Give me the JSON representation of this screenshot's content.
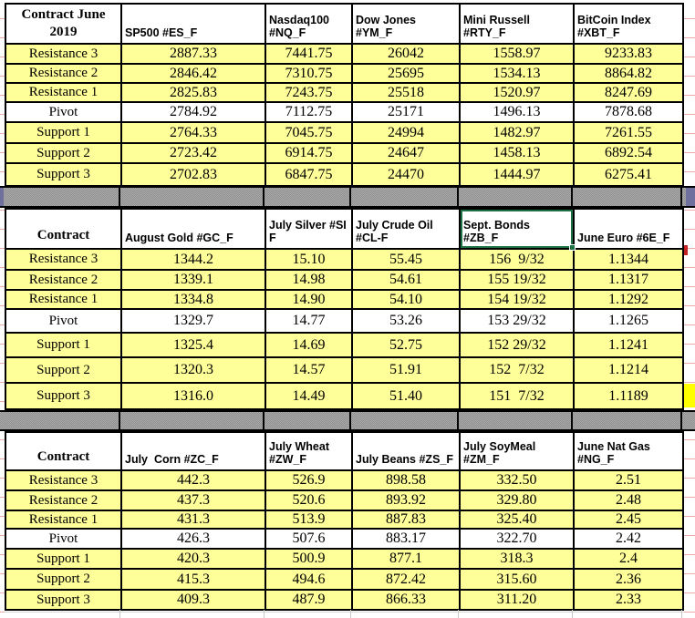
{
  "row_labels": [
    "Resistance 3",
    "Resistance 2",
    "Resistance 1",
    "Pivot",
    "Support 1",
    "Support 2",
    "Support 3"
  ],
  "selection": {
    "selected_cell": "Sept. Bonds #ZB_F"
  },
  "colors": {
    "cell_fill": "#FFFF99",
    "pivot_row_fill": "#FFFFFF",
    "separator_fill": "#9A9A9A",
    "selection_border": "#1E7145",
    "margin_highlight": "#FFFF00",
    "grid_border": "#000000"
  },
  "tables": [
    {
      "corner": "Contract June\n2019",
      "columns": [
        "SP500 #ES_F",
        "Nasdaq100\n#NQ_F",
        "Dow Jones\n#YM_F",
        "Mini Russell\n#RTY_F",
        "BitCoin Index\n#XBT_F"
      ],
      "rows": [
        {
          "label": "Resistance 3",
          "values": [
            "2887.33",
            "7441.75",
            "26042",
            "1558.97",
            "9233.83"
          ]
        },
        {
          "label": "Resistance 2",
          "values": [
            "2846.42",
            "7310.75",
            "25695",
            "1534.13",
            "8864.82"
          ]
        },
        {
          "label": "Resistance 1",
          "values": [
            "2825.83",
            "7243.75",
            "25518",
            "1520.97",
            "8247.69"
          ]
        },
        {
          "label": "Pivot",
          "values": [
            "2784.92",
            "7112.75",
            "25171",
            "1496.13",
            "7878.68"
          ]
        },
        {
          "label": "Support 1",
          "values": [
            "2764.33",
            "7045.75",
            "24994",
            "1482.97",
            "7261.55"
          ]
        },
        {
          "label": "Support 2",
          "values": [
            "2723.42",
            "6914.75",
            "24647",
            "1458.13",
            "6892.54"
          ]
        },
        {
          "label": "Support 3",
          "values": [
            "2702.83",
            "6847.75",
            "24470",
            "1444.97",
            "6275.41"
          ]
        }
      ]
    },
    {
      "corner": "Contract",
      "columns": [
        "August Gold #GC_F",
        "July Silver #SI\nF",
        "July Crude Oil\n#CL-F",
        "Sept. Bonds\n#ZB_F",
        "June Euro #6E_F"
      ],
      "rows": [
        {
          "label": "Resistance 3",
          "values": [
            "1344.2",
            "15.10",
            "55.45",
            "156  9/32",
            "1.1344"
          ]
        },
        {
          "label": "Resistance 2",
          "values": [
            "1339.1",
            "14.98",
            "54.61",
            "155 19/32",
            "1.1317"
          ]
        },
        {
          "label": "Resistance 1",
          "values": [
            "1334.8",
            "14.90",
            "54.10",
            "154 19/32",
            "1.1292"
          ]
        },
        {
          "label": "Pivot",
          "values": [
            "1329.7",
            "14.77",
            "53.26",
            "153 29/32",
            "1.1265"
          ]
        },
        {
          "label": "Support 1",
          "values": [
            "1325.4",
            "14.69",
            "52.75",
            "152 29/32",
            "1.1241"
          ]
        },
        {
          "label": "Support 2",
          "values": [
            "1320.3",
            "14.57",
            "51.91",
            "152  7/32",
            "1.1214"
          ]
        },
        {
          "label": "Support 3",
          "values": [
            "1316.0",
            "14.49",
            "51.40",
            "151  7/32",
            "1.1189"
          ]
        }
      ]
    },
    {
      "corner": "Contract",
      "columns": [
        "July  Corn #ZC_F",
        "July Wheat\n#ZW_F",
        "July Beans #ZS_F",
        "July SoyMeal\n#ZM_F",
        "June Nat Gas\n#NG_F"
      ],
      "rows": [
        {
          "label": "Resistance 3",
          "values": [
            "442.3",
            "526.9",
            "898.58",
            "332.50",
            "2.51"
          ]
        },
        {
          "label": "Resistance 2",
          "values": [
            "437.3",
            "520.6",
            "893.92",
            "329.80",
            "2.48"
          ]
        },
        {
          "label": "Resistance 1",
          "values": [
            "431.3",
            "513.9",
            "887.83",
            "325.40",
            "2.45"
          ]
        },
        {
          "label": "Pivot",
          "values": [
            "426.3",
            "507.6",
            "883.17",
            "322.70",
            "2.42"
          ]
        },
        {
          "label": "Support 1",
          "values": [
            "420.3",
            "500.9",
            "877.1",
            "318.3",
            "2.4"
          ]
        },
        {
          "label": "Support 2",
          "values": [
            "415.3",
            "494.6",
            "872.42",
            "315.60",
            "2.36"
          ]
        },
        {
          "label": "Support 3",
          "values": [
            "409.3",
            "487.9",
            "866.33",
            "311.20",
            "2.33"
          ]
        }
      ]
    }
  ]
}
